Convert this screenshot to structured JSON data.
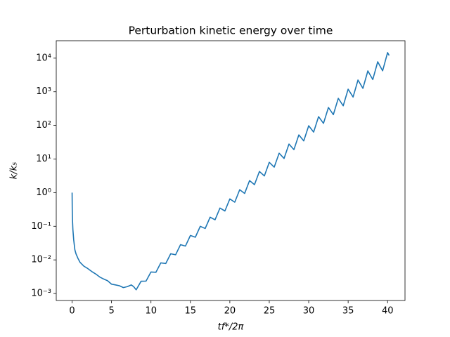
{
  "chart_data": {
    "type": "line",
    "title": "Perturbation kinetic energy over time",
    "xlabel": "tf*/2π",
    "ylabel": "k/k₅",
    "yscale": "log",
    "color": "#1f77b4",
    "x": [
      0,
      0.02,
      0.05,
      0.1,
      0.2,
      0.35,
      0.5,
      0.75,
      1,
      1.5,
      2,
      2.5,
      3,
      3.5,
      4,
      4.5,
      5,
      5.5,
      6,
      6.5,
      7,
      7.5,
      7.8,
      8.125,
      8.75,
      9.375,
      10,
      10.625,
      11.25,
      11.875,
      12.5,
      13.125,
      13.75,
      14.375,
      15,
      15.625,
      16.25,
      16.875,
      17.5,
      18.125,
      18.75,
      19.375,
      20,
      20.625,
      21.25,
      21.875,
      22.5,
      23.125,
      23.75,
      24.375,
      25,
      25.625,
      26.25,
      26.875,
      27.5,
      28.125,
      28.75,
      29.375,
      30,
      30.625,
      31.25,
      31.875,
      32.5,
      33.125,
      33.75,
      34.375,
      35,
      35.625,
      36.25,
      36.875,
      37.5,
      38.125,
      38.75,
      39.375,
      40,
      40.2
    ],
    "values": [
      1,
      0.3,
      0.15,
      0.08,
      0.04,
      0.02,
      0.015,
      0.011,
      0.0085,
      0.0065,
      0.0055,
      0.0045,
      0.0038,
      0.0031,
      0.0027,
      0.0024,
      0.0019,
      0.0018,
      0.0017,
      0.0015,
      0.0016,
      0.0018,
      0.0016,
      0.00129,
      0.00232,
      0.00234,
      0.00436,
      0.00428,
      0.00815,
      0.0078,
      0.0152,
      0.0142,
      0.0284,
      0.0258,
      0.0532,
      0.0472,
      0.0995,
      0.0859,
      0.186,
      0.156,
      0.348,
      0.285,
      0.65,
      0.52,
      1.22,
      0.946,
      2.28,
      1.73,
      4.26,
      3.14,
      7.98,
      5.73,
      14.9,
      10.4,
      27.9,
      19,
      52.1,
      34.6,
      97.7,
      63.2,
      182,
      115,
      341,
      209,
      638,
      382,
      1194,
      697,
      2234,
      1268,
      4178,
      2312,
      7798,
      4207,
      14622,
      12000
    ],
    "xlim": [
      -2.01,
      42.21
    ],
    "xticks": [
      0,
      5,
      10,
      15,
      20,
      25,
      30,
      35,
      40
    ],
    "ylim": [
      0.00062,
      33000
    ],
    "yticks": [
      {
        "value": 0.001,
        "label": "10⁻³"
      },
      {
        "value": 0.01,
        "label": "10⁻²"
      },
      {
        "value": 0.1,
        "label": "10⁻¹"
      },
      {
        "value": 1,
        "label": "10⁰"
      },
      {
        "value": 10,
        "label": "10¹"
      },
      {
        "value": 100,
        "label": "10²"
      },
      {
        "value": 1000,
        "label": "10³"
      },
      {
        "value": 10000,
        "label": "10⁴"
      }
    ]
  }
}
